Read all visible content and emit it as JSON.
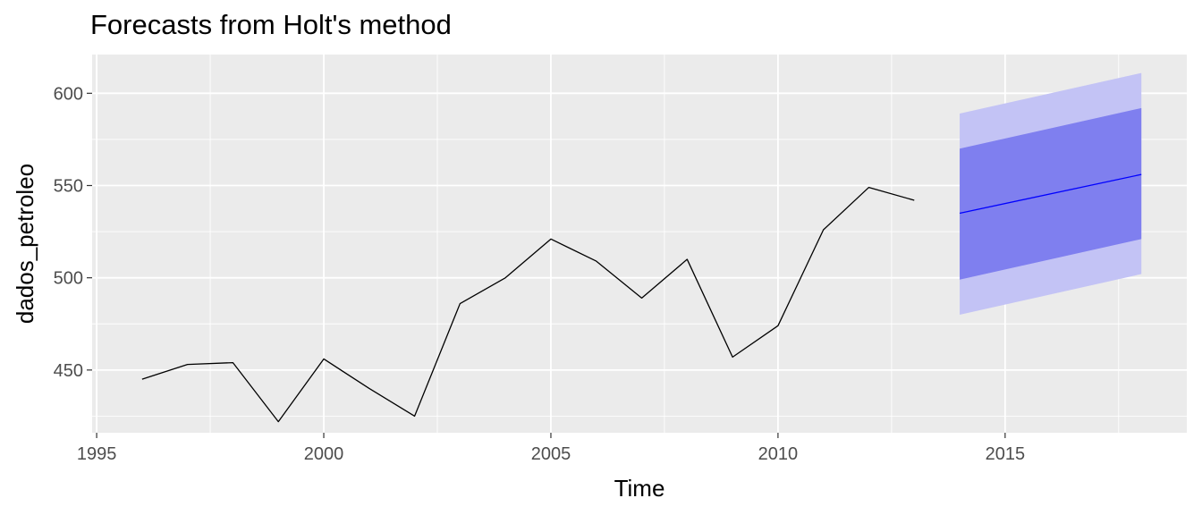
{
  "chart_data": {
    "type": "line",
    "title": "Forecasts from Holt's method",
    "xlabel": "Time",
    "ylabel": "dados_petroleo",
    "xlim": [
      1994.9,
      2019.0
    ],
    "ylim": [
      416,
      621
    ],
    "x_ticks": [
      1995,
      2000,
      2005,
      2010,
      2015
    ],
    "y_ticks": [
      450,
      500,
      550,
      600
    ],
    "grid": true,
    "legend": "none",
    "series": [
      {
        "kind": "observed",
        "color": "#000000",
        "x": [
          1996,
          1997,
          1998,
          1999,
          2000,
          2001,
          2002,
          2003,
          2004,
          2005,
          2006,
          2007,
          2008,
          2009,
          2010,
          2011,
          2012,
          2013
        ],
        "values": [
          445,
          453,
          454,
          422,
          456,
          440,
          425,
          486,
          500,
          521,
          509,
          489,
          510,
          457,
          474,
          526,
          549,
          542
        ]
      },
      {
        "kind": "forecast",
        "color": "#0000ff",
        "x": [
          2014,
          2018
        ],
        "values": [
          535,
          556
        ]
      }
    ],
    "intervals": [
      {
        "level": 95,
        "color": "#c3c3f5",
        "x": [
          2014,
          2018
        ],
        "lower": [
          480,
          502
        ],
        "upper": [
          589,
          611
        ]
      },
      {
        "level": 80,
        "color": "#7f7fef",
        "x": [
          2014,
          2018
        ],
        "lower": [
          499,
          521
        ],
        "upper": [
          570,
          592
        ]
      }
    ],
    "colors": {
      "panel": "#ebebeb",
      "grid": "#ffffff",
      "tick_text": "#4d4d4d"
    }
  }
}
